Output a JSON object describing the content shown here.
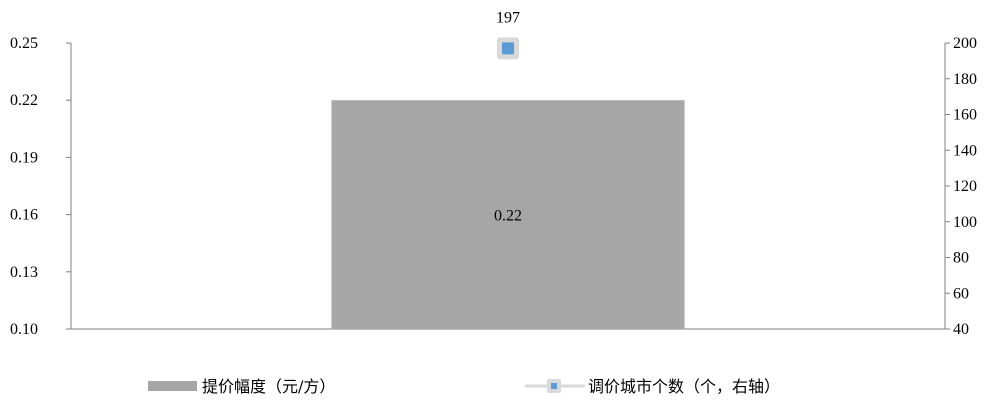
{
  "chart_data": {
    "type": "bar",
    "categories": [
      ""
    ],
    "series": [
      {
        "name": "提价幅度（元/方）",
        "type": "bar",
        "axis": "left",
        "values": [
          0.22
        ],
        "color": "#a6a6a6"
      },
      {
        "name": "调价城市个数（个，右轴）",
        "type": "line",
        "axis": "right",
        "values": [
          197
        ],
        "color": "#5b9bd5",
        "marker_border": "#d9d9d9"
      }
    ],
    "y_left": {
      "lim": [
        0.1,
        0.25
      ],
      "ticks": [
        "0.25",
        "0.22",
        "0.19",
        "0.16",
        "0.13",
        "0.10"
      ]
    },
    "y_right": {
      "lim": [
        40,
        200
      ],
      "ticks": [
        "200",
        "180",
        "160",
        "140",
        "120",
        "100",
        "80",
        "60",
        "40"
      ]
    },
    "data_labels": {
      "bar": "0.22",
      "line": "197"
    },
    "legend": {
      "position": "bottom",
      "items": [
        "提价幅度（元/方）",
        "调价城市个数（个，右轴）"
      ]
    },
    "grid": false
  }
}
